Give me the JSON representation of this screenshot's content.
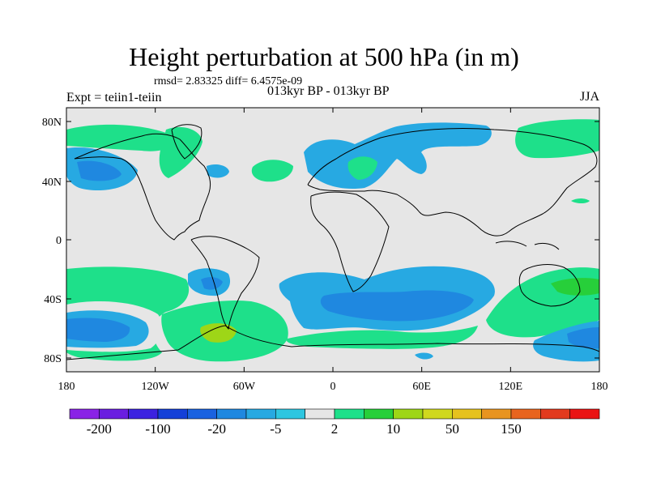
{
  "title": "Height perturbation at 500 hPa (in m)",
  "stats": "rmsd= 2.83325 diff= 6.4575e-09",
  "periods": "013kyr BP - 013kyr BP",
  "experiment": "Expt = teiin1-teiin",
  "season": "JJA",
  "lat_labels": [
    "80N",
    "40N",
    "0",
    "40S",
    "80S"
  ],
  "lon_labels": [
    "180",
    "120W",
    "60W",
    "0",
    "60E",
    "120E",
    "180"
  ],
  "colorbar": {
    "labels": [
      "-200",
      "-100",
      "-20",
      "-5",
      "2",
      "10",
      "50",
      "150"
    ],
    "colors": [
      "#8a22e6",
      "#6a1ee0",
      "#3c22e0",
      "#1440d8",
      "#1a62e0",
      "#1f88e0",
      "#27a9e2",
      "#2ec6e0",
      "#e6e6e6",
      "#1ee08a",
      "#27cf3a",
      "#9ed617",
      "#d0d81e",
      "#e6c21e",
      "#e89420",
      "#e8641e",
      "#e23a1e",
      "#ea1414"
    ]
  },
  "colors": {
    "background": "#e6e6e6",
    "coast": "#000000"
  }
}
